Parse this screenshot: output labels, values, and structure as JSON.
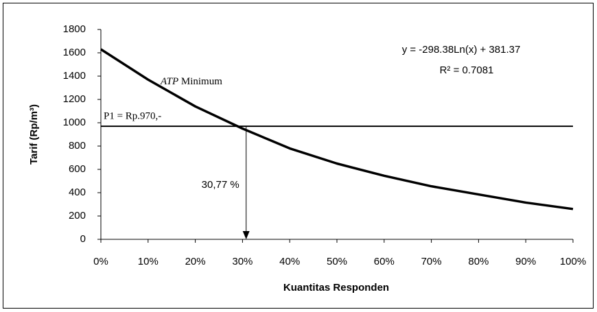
{
  "chart_data": {
    "type": "line",
    "xlabel": "Kuantitas Responden",
    "ylabel": "Tarif (Rp/m³)",
    "x": [
      0,
      10,
      20,
      30,
      40,
      50,
      60,
      70,
      80,
      90,
      100
    ],
    "values": [
      1630,
      1370,
      1140,
      950,
      780,
      650,
      545,
      455,
      385,
      315,
      260
    ],
    "color": "#000000",
    "xlim": [
      0,
      100
    ],
    "xticks": [
      {
        "value": 0,
        "label": "0%"
      },
      {
        "value": 10,
        "label": "10%"
      },
      {
        "value": 20,
        "label": "20%"
      },
      {
        "value": 30,
        "label": "30%"
      },
      {
        "value": 40,
        "label": "40%"
      },
      {
        "value": 50,
        "label": "50%"
      },
      {
        "value": 60,
        "label": "60%"
      },
      {
        "value": 70,
        "label": "70%"
      },
      {
        "value": 80,
        "label": "80%"
      },
      {
        "value": 90,
        "label": "90%"
      },
      {
        "value": 100,
        "label": "100%"
      }
    ],
    "ylim": [
      0,
      1800
    ],
    "yticks": [
      0,
      200,
      400,
      600,
      800,
      1000,
      1200,
      1400,
      1600,
      1800
    ],
    "grid": false,
    "equation": "y = -298.38Ln(x) + 381.37",
    "r_squared": "R² = 0.7081",
    "curve_label": {
      "italic": "ATP",
      "text": "Minimum"
    },
    "hline": {
      "value": 970,
      "label": "P1 = Rp.970,-"
    },
    "vline": {
      "value": 30.77,
      "label": "30,77 %"
    }
  }
}
